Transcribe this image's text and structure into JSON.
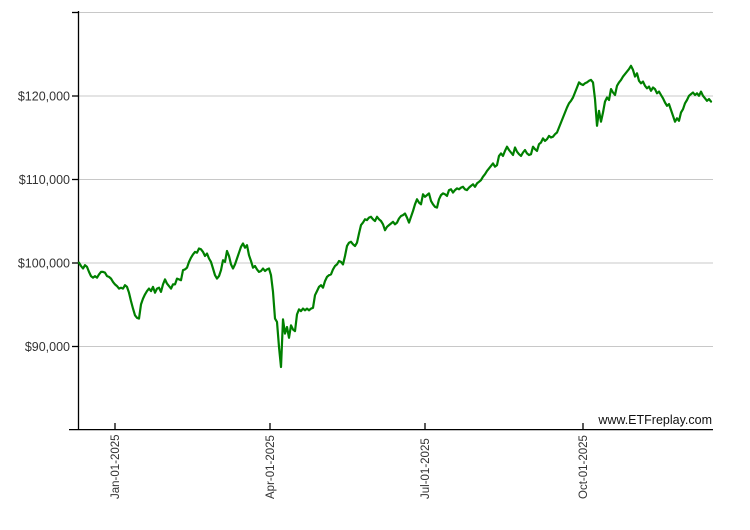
{
  "watermark": "www.ETFreplay.com",
  "y_axis": {
    "labels": [
      "$120,000",
      "$110,000",
      "$100,000",
      "$90,000"
    ]
  },
  "x_axis": {
    "labels": [
      "Jan-01-2025",
      "Apr-01-2025",
      "Jul-01-2025",
      "Oct-01-2025"
    ]
  },
  "colors": {
    "line": "#008000",
    "grid": "#c8c8c8",
    "axis": "#000000",
    "label": "#333333"
  },
  "chart_data": {
    "type": "line",
    "title": "",
    "xlabel": "",
    "ylabel": "",
    "x_tick_labels": [
      "Jan-01-2025",
      "Apr-01-2025",
      "Jul-01-2025",
      "Oct-01-2025"
    ],
    "y_tick_labels": [
      "$120,000",
      "$110,000",
      "$100,000",
      "$90,000"
    ],
    "y_gridline_values": [
      130000,
      120000,
      110000,
      100000,
      90000
    ],
    "ylim": [
      80000,
      130000
    ],
    "x_range": "approx. Dec-2024 through Dec-2025 (quarterly ticks shown)",
    "grid": "horizontal",
    "legend": "none",
    "series": [
      {
        "name": "portfolio-value-usd",
        "color": "#008000",
        "values": [
          100000,
          99600,
          99300,
          99700,
          99500,
          98900,
          98400,
          98200,
          98400,
          98200,
          98600,
          98900,
          98900,
          98800,
          98400,
          98300,
          98100,
          97700,
          97400,
          97200,
          96900,
          97000,
          96900,
          97300,
          97100,
          96400,
          95400,
          94500,
          93700,
          93400,
          93300,
          95000,
          95700,
          96200,
          96600,
          96900,
          96600,
          97100,
          96400,
          96900,
          97000,
          96500,
          97400,
          98000,
          97500,
          97200,
          96900,
          97400,
          97400,
          98100,
          98000,
          97900,
          99100,
          99200,
          99400,
          100100,
          100600,
          101000,
          101300,
          101200,
          101700,
          101600,
          101300,
          100800,
          101100,
          100500,
          100100,
          99300,
          98500,
          98100,
          98400,
          99100,
          100300,
          100100,
          101400,
          100800,
          99800,
          99300,
          99800,
          100500,
          101200,
          101900,
          102300,
          101800,
          102100,
          100900,
          100200,
          99400,
          99600,
          99200,
          98900,
          99000,
          99300,
          99000,
          99200,
          99300,
          98500,
          96500,
          93300,
          92900,
          89900,
          87500,
          93200,
          91500,
          92300,
          91000,
          92500,
          92000,
          91800,
          93800,
          94400,
          94200,
          94500,
          94300,
          94500,
          94300,
          94500,
          94600,
          96100,
          96600,
          97100,
          97300,
          97000,
          97800,
          98300,
          98500,
          98600,
          99200,
          99600,
          99800,
          100200,
          100100,
          99800,
          100800,
          102000,
          102400,
          102500,
          102200,
          102000,
          102400,
          103500,
          104500,
          104800,
          105200,
          105100,
          105400,
          105500,
          105200,
          105000,
          105500,
          105200,
          105000,
          104600,
          103900,
          104300,
          104500,
          104700,
          104900,
          104600,
          104800,
          105300,
          105600,
          105700,
          105900,
          105400,
          104800,
          105500,
          106200,
          107000,
          107600,
          107200,
          107000,
          108200,
          107900,
          108100,
          108300,
          107400,
          107000,
          106700,
          106600,
          107600,
          108100,
          108300,
          108200,
          108000,
          108700,
          108800,
          108400,
          108700,
          108900,
          108800,
          109000,
          109100,
          108800,
          108700,
          109000,
          109200,
          109400,
          109100,
          109500,
          109700,
          109900,
          110300,
          110600,
          111000,
          111300,
          111600,
          111900,
          111500,
          111700,
          112800,
          113100,
          112800,
          113400,
          113900,
          113500,
          113200,
          112900,
          113800,
          113300,
          113000,
          112800,
          113200,
          113500,
          113100,
          112900,
          113000,
          113900,
          113600,
          113400,
          114200,
          114400,
          114900,
          114600,
          114800,
          115200,
          115000,
          115100,
          115400,
          115600,
          116200,
          116800,
          117400,
          118000,
          118600,
          119100,
          119400,
          119800,
          120400,
          121000,
          121600,
          121400,
          121300,
          121500,
          121600,
          121800,
          121900,
          121600,
          119600,
          116400,
          118200,
          116900,
          118000,
          119300,
          119800,
          119500,
          120800,
          120400,
          120100,
          121200,
          121600,
          121900,
          122300,
          122600,
          122900,
          123200,
          123600,
          123100,
          122300,
          122700,
          121800,
          121500,
          121700,
          121200,
          120900,
          121100,
          120600,
          121000,
          120800,
          120300,
          120500,
          120100,
          119700,
          119200,
          118800,
          119000,
          118300,
          117600,
          116900,
          117300,
          117000,
          118000,
          118400,
          119100,
          119500,
          120000,
          120200,
          120400,
          120100,
          120300,
          120000,
          120500,
          120000,
          119700,
          119400,
          119600,
          119300
        ]
      }
    ]
  }
}
